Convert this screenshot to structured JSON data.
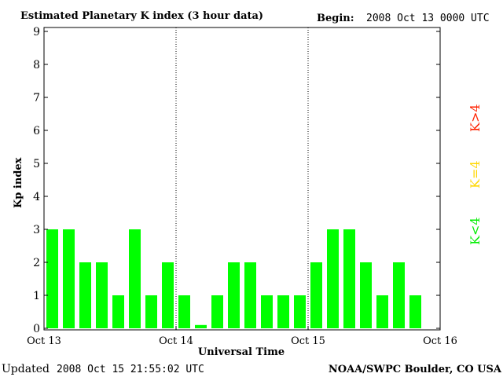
{
  "chart_data": {
    "type": "bar",
    "title": "Estimated Planetary K index (3 hour data)",
    "begin_label": "Begin:",
    "begin_value": "2008 Oct 13 0000 UTC",
    "ylabel": "Kp index",
    "xlabel": "Universal Time",
    "ylim": [
      0,
      9
    ],
    "yticks": [
      0,
      1,
      2,
      3,
      4,
      5,
      6,
      7,
      8,
      9
    ],
    "xlim_days": [
      0,
      3
    ],
    "xticks": [
      {
        "day": 0,
        "label": "Oct 13"
      },
      {
        "day": 1,
        "label": "Oct 14"
      },
      {
        "day": 2,
        "label": "Oct 15"
      },
      {
        "day": 3,
        "label": "Oct 16"
      }
    ],
    "day_dividers": [
      1,
      2
    ],
    "intervals_per_day": 8,
    "values": [
      3,
      3,
      2,
      2,
      1,
      3,
      1,
      2,
      1,
      0.1,
      1,
      2,
      2,
      1,
      1,
      1,
      2,
      3,
      3,
      2,
      1,
      2,
      1
    ],
    "bar_color": "#00ff00",
    "legend": [
      {
        "label": "K<4",
        "color": "#00ee00"
      },
      {
        "label": "K=4",
        "color": "#ffd700"
      },
      {
        "label": "K>4",
        "color": "#ff2200"
      }
    ]
  },
  "footer": {
    "updated_label": "Updated",
    "updated_value": "2008 Oct 15 21:55:02 UTC",
    "source": "NOAA/SWPC Boulder, CO USA"
  }
}
